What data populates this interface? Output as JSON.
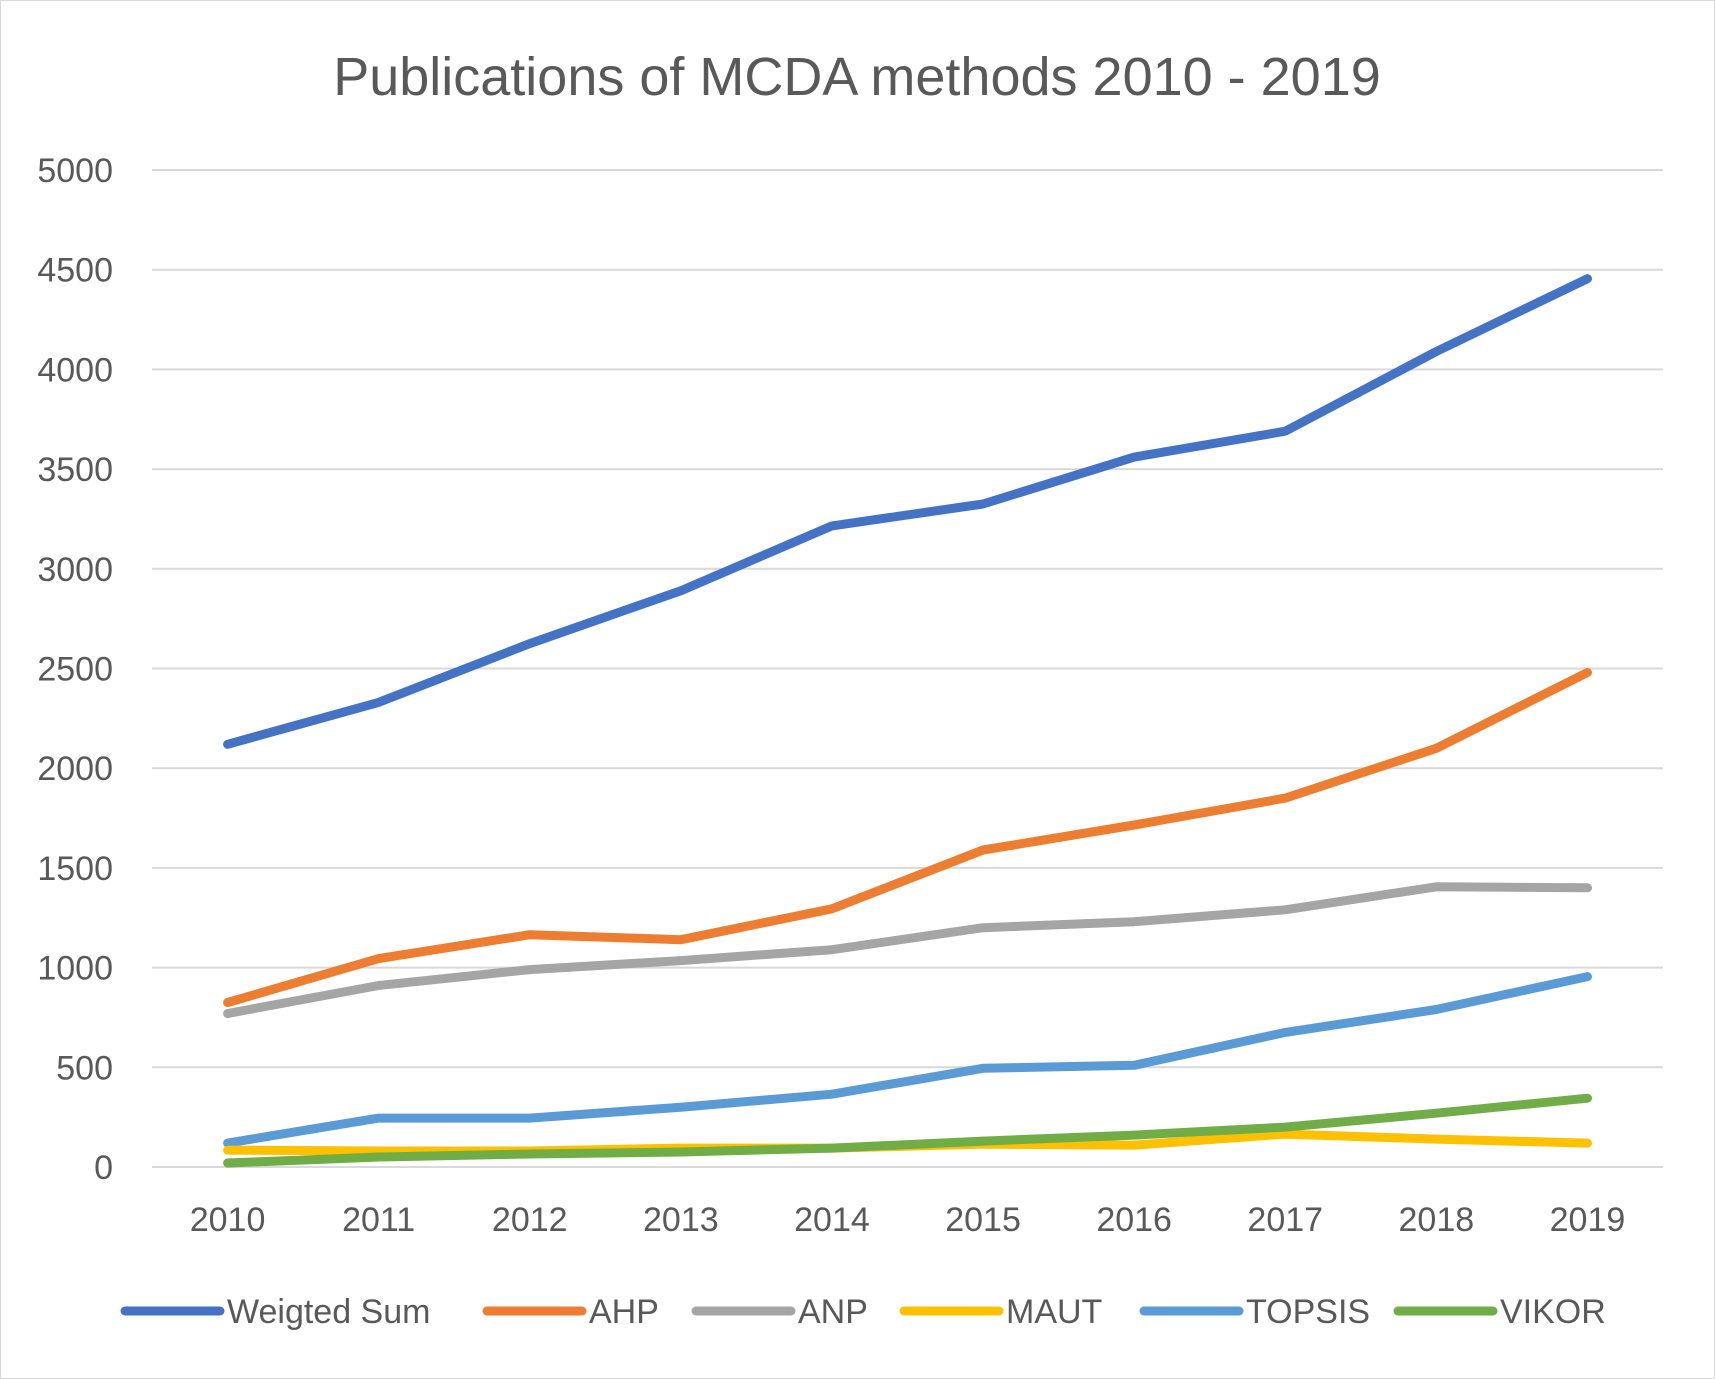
{
  "chart_data": {
    "type": "line",
    "title": "Publications of MCDA methods 2010 - 2019",
    "xlabel": "",
    "ylabel": "",
    "categories": [
      "2010",
      "2011",
      "2012",
      "2013",
      "2014",
      "2015",
      "2016",
      "2017",
      "2018",
      "2019"
    ],
    "ylim": [
      0,
      5000
    ],
    "yticks": [
      "0",
      "500",
      "1000",
      "1500",
      "2000",
      "2500",
      "3000",
      "3500",
      "4000",
      "4500",
      "5000"
    ],
    "grid": true,
    "legend_position": "bottom",
    "series": [
      {
        "name": "Weigted Sum",
        "color": "#4472c4",
        "values": [
          2120,
          2330,
          2625,
          2890,
          3215,
          3325,
          3560,
          3690,
          4090,
          4455
        ]
      },
      {
        "name": "AHP",
        "color": "#ed7d31",
        "values": [
          825,
          1045,
          1165,
          1140,
          1295,
          1590,
          1715,
          1850,
          2100,
          2480
        ]
      },
      {
        "name": "ANP",
        "color": "#a5a5a5",
        "values": [
          770,
          910,
          990,
          1035,
          1090,
          1200,
          1230,
          1290,
          1405,
          1400
        ]
      },
      {
        "name": "MAUT",
        "color": "#ffc000",
        "values": [
          85,
          80,
          80,
          95,
          95,
          115,
          110,
          165,
          140,
          120
        ]
      },
      {
        "name": "TOPSIS",
        "color": "#5b9bd5",
        "values": [
          120,
          245,
          245,
          300,
          365,
          495,
          510,
          675,
          790,
          955
        ]
      },
      {
        "name": "VIKOR",
        "color": "#70ad47",
        "values": [
          20,
          50,
          65,
          75,
          95,
          130,
          160,
          200,
          270,
          345
        ]
      }
    ]
  }
}
